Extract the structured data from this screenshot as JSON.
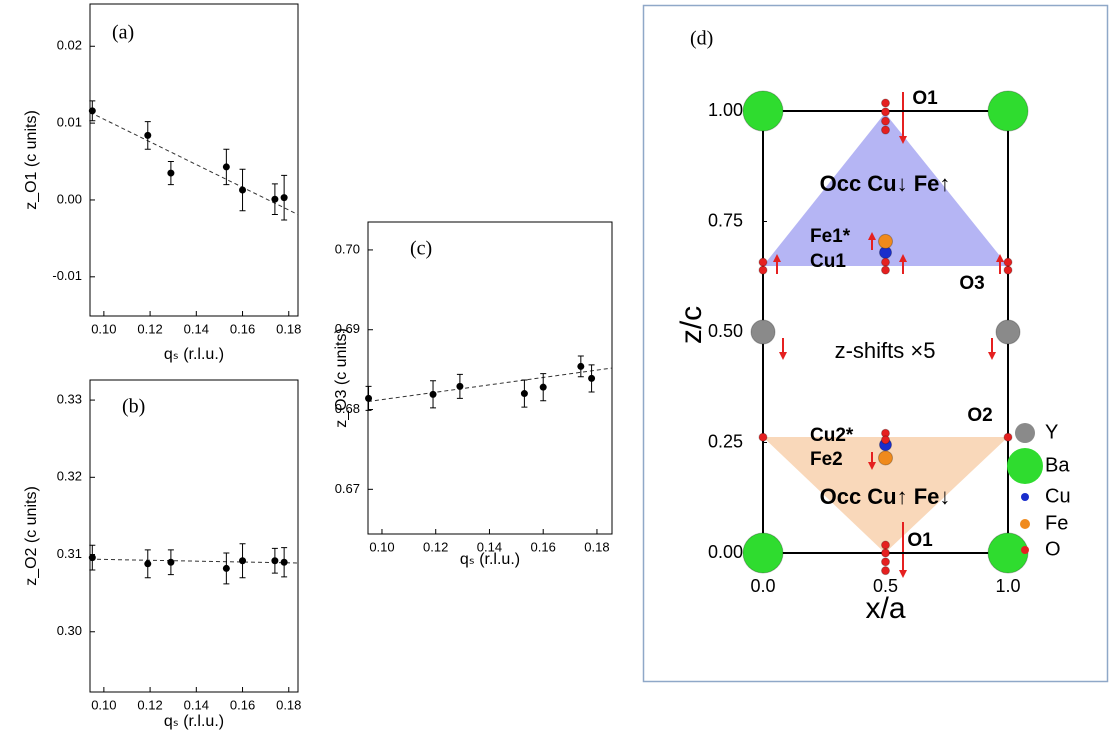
{
  "chart_data": [
    {
      "type": "scatter",
      "title": "(a)",
      "x_label": "qₛ (r.l.u.)",
      "y_label": "z_O1 (c units)",
      "xlim": [
        0.094,
        0.184
      ],
      "ylim": [
        -0.0151,
        0.0255
      ],
      "xticks": [
        {
          "value": 0.1,
          "label": "0.10"
        },
        0.12,
        0.14,
        0.16,
        0.18
      ],
      "yticks": [
        -0.01,
        {
          "value": 0,
          "label": "0.00"
        },
        0.01,
        0.02
      ],
      "x": [
        0.095,
        0.119,
        0.129,
        0.153,
        0.16,
        0.174,
        0.178
      ],
      "values": [
        0.0116,
        0.0084,
        0.0035,
        0.0043,
        0.0013,
        0.0001,
        0.0003
      ],
      "errors": [
        0.0013,
        0.0018,
        0.0015,
        0.0023,
        0.0027,
        0.002,
        0.0029
      ],
      "color": "#000000",
      "fit": {
        "x": [
          0.094,
          0.184
        ],
        "y": [
          0.0114,
          -0.0019
        ]
      }
    },
    {
      "type": "scatter",
      "title": "(b)",
      "x_label": "qₛ (r.l.u.)",
      "y_label": "z_O2 (c units)",
      "xlim": [
        0.094,
        0.184
      ],
      "ylim": [
        0.2922,
        0.3326
      ],
      "xticks": [
        {
          "value": 0.1,
          "label": "0.10"
        },
        0.12,
        0.14,
        0.16,
        0.18
      ],
      "yticks": [
        {
          "value": 0.3,
          "label": "0.30"
        },
        0.31,
        0.32,
        0.33
      ],
      "x": [
        0.095,
        0.119,
        0.129,
        0.153,
        0.16,
        0.174,
        0.178
      ],
      "values": [
        0.3096,
        0.3088,
        0.309,
        0.3082,
        0.3092,
        0.3092,
        0.309
      ],
      "errors": [
        0.0016,
        0.0018,
        0.0016,
        0.002,
        0.0022,
        0.0016,
        0.0019
      ],
      "color": "#000000",
      "fit": {
        "x": [
          0.094,
          0.184
        ],
        "y": [
          0.3094,
          0.3089
        ]
      }
    },
    {
      "type": "scatter",
      "title": "(c)",
      "x_label": "qₛ (r.l.u.)",
      "y_label": "z_O3 (c units)",
      "xlim": [
        0.0948,
        0.1856
      ],
      "ylim": [
        0.6644,
        0.7035
      ],
      "xticks": [
        {
          "value": 0.1,
          "label": "0.10"
        },
        0.12,
        0.14,
        0.16,
        0.18
      ],
      "yticks": [
        0.67,
        0.68,
        0.69,
        {
          "value": 0.7,
          "label": "0.70"
        }
      ],
      "x": [
        0.095,
        0.119,
        0.129,
        0.153,
        0.16,
        0.174,
        0.178
      ],
      "values": [
        0.6814,
        0.6819,
        0.6829,
        0.682,
        0.6828,
        0.6854,
        0.6839
      ],
      "errors": [
        0.0015,
        0.0017,
        0.0015,
        0.0017,
        0.0017,
        0.0013,
        0.0017
      ],
      "color": "#000000",
      "fit": {
        "x": [
          0.0948,
          0.1856
        ],
        "y": [
          0.681,
          0.6852
        ]
      }
    },
    {
      "type": "atoms",
      "title": "(d)",
      "x_label": "x/a",
      "y_label": "z/c",
      "xlim": [
        0,
        1
      ],
      "ylim": [
        0,
        1
      ],
      "xticks": [
        {
          "value": 0,
          "label": "0.0"
        },
        0.5,
        {
          "value": 1,
          "label": "1.0"
        }
      ],
      "yticks": [
        {
          "value": 0,
          "label": "0.00"
        },
        0.25,
        {
          "value": 0.5,
          "label": "0.50"
        },
        0.75,
        {
          "value": 1,
          "label": "1.00"
        }
      ],
      "legend": "right",
      "series": [
        {
          "name": "Y",
          "color": "#8a8a8a",
          "x": [
            0,
            1
          ],
          "values": [
            0.5,
            0.5
          ]
        },
        {
          "name": "Ba",
          "color": "#2fdc2f",
          "x": [
            0,
            1,
            0,
            1
          ],
          "values": [
            1,
            1,
            0,
            0
          ]
        },
        {
          "name": "Cu",
          "color": "#1a2ecc",
          "x": [
            0.5,
            0.5
          ],
          "values": [
            0.68,
            0.245
          ]
        },
        {
          "name": "Fe",
          "color": "#f08a1c",
          "x": [
            0.5,
            0.5
          ],
          "values": [
            0.705,
            0.215
          ]
        },
        {
          "name": "O",
          "color": "#e52020",
          "x": [
            0.5,
            0.5,
            0.5,
            0.5,
            0.5,
            0.5,
            0.5,
            0.5,
            0,
            0,
            0.5,
            0.5,
            1,
            1,
            0,
            1,
            0.5,
            0.5
          ],
          "values": [
            1.018,
            0.998,
            0.977,
            0.957,
            0.018,
            0,
            -0.02,
            -0.04,
            0.658,
            0.64,
            0.658,
            0.64,
            0.658,
            0.64,
            0.262,
            0.262,
            0.271,
            0.256
          ]
        }
      ],
      "annotations": [
        "O1",
        "Occ Cu↓ Fe↑",
        "Fe1*",
        "Cu1",
        "O3",
        "z-shifts ×5",
        "O2",
        "Cu2*",
        "Fe2",
        "Occ Cu↑ Fe↓",
        "O1"
      ]
    }
  ]
}
